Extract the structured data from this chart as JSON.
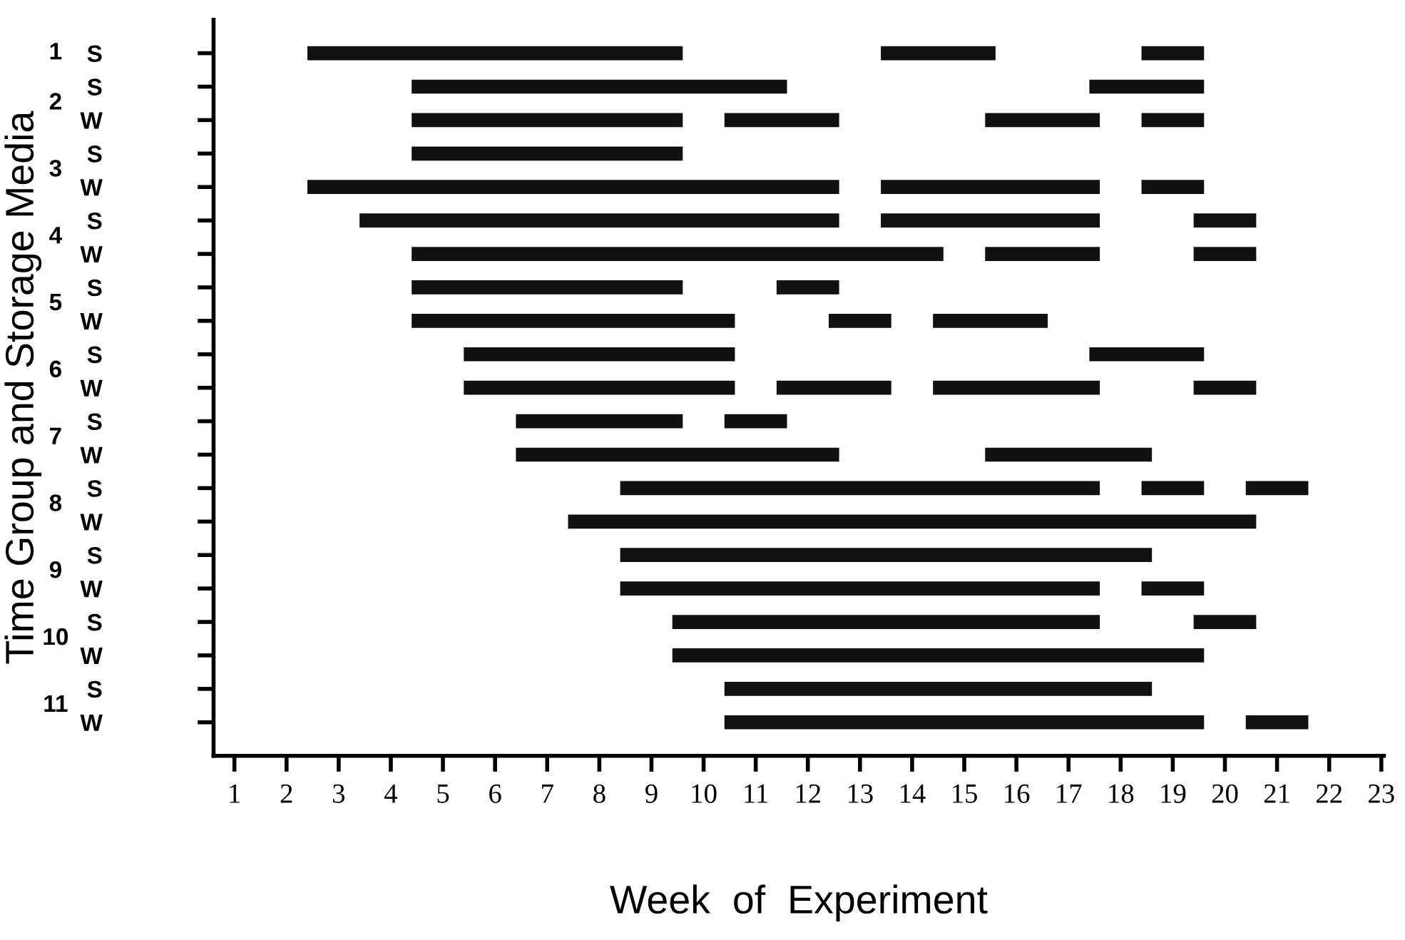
{
  "chart_data": {
    "type": "bar",
    "orientation": "horizontal",
    "xlabel": "Week  of  Experiment",
    "ylabel": "Time Group and Storage Media",
    "categories": [
      "S",
      "S",
      "W",
      "S",
      "W",
      "S",
      "W",
      "S",
      "W",
      "S",
      "W",
      "S",
      "W",
      "S",
      "W",
      "S",
      "W",
      "S",
      "W",
      "S",
      "W"
    ],
    "annotations": [
      "1",
      "2",
      "3",
      "4",
      "5",
      "6",
      "7",
      "8",
      "9",
      "10",
      "11"
    ],
    "xlim": [
      0.6,
      23.05
    ],
    "xticks": [
      1,
      2,
      3,
      4,
      5,
      6,
      7,
      8,
      9,
      10,
      11,
      12,
      13,
      14,
      15,
      16,
      17,
      18,
      19,
      20,
      21,
      22,
      23
    ],
    "series": [
      {
        "color": "#111111",
        "base": [
          2.4,
          4.4,
          4.4,
          4.4,
          2.4,
          3.4,
          4.4,
          4.4,
          4.4,
          5.4,
          5.4,
          6.4,
          6.4,
          8.4,
          7.4,
          8.4,
          8.4,
          9.4,
          9.4,
          10.4,
          10.4
        ],
        "values": [
          7.2,
          7.2,
          5.2,
          5.2,
          10.2,
          9.2,
          10.2,
          5.2,
          6.2,
          5.2,
          5.2,
          3.2,
          6.2,
          9.2,
          13.2,
          10.2,
          9.2,
          8.2,
          10.2,
          8.2,
          9.2
        ]
      },
      {
        "color": "#111111",
        "base": [
          13.4,
          17.4,
          10.4,
          null,
          13.4,
          13.4,
          15.4,
          11.4,
          12.4,
          17.4,
          11.4,
          10.4,
          15.4,
          18.4,
          null,
          null,
          18.4,
          19.4,
          null,
          null,
          20.4
        ],
        "values": [
          2.2,
          2.2,
          2.2,
          null,
          4.2,
          4.2,
          2.2,
          1.2,
          1.2,
          2.2,
          2.2,
          1.2,
          3.2,
          1.2,
          null,
          null,
          1.2,
          1.2,
          null,
          null,
          1.2
        ]
      },
      {
        "color": "#111111",
        "base": [
          18.4,
          null,
          15.4,
          null,
          18.4,
          19.4,
          19.4,
          null,
          14.4,
          null,
          14.4,
          null,
          null,
          20.4,
          null,
          null,
          null,
          null,
          null,
          null,
          null
        ],
        "values": [
          1.2,
          null,
          2.2,
          null,
          1.2,
          1.2,
          1.2,
          null,
          2.2,
          null,
          3.2,
          null,
          null,
          1.2,
          null,
          null,
          null,
          null,
          null,
          null,
          null
        ]
      },
      {
        "color": "#111111",
        "base": [
          null,
          null,
          18.4,
          null,
          null,
          null,
          null,
          null,
          null,
          null,
          19.4,
          null,
          null,
          null,
          null,
          null,
          null,
          null,
          null,
          null,
          null
        ],
        "values": [
          null,
          null,
          1.2,
          null,
          null,
          null,
          null,
          null,
          null,
          null,
          1.2,
          null,
          null,
          null,
          null,
          null,
          null,
          null,
          null,
          null,
          null
        ]
      }
    ]
  }
}
